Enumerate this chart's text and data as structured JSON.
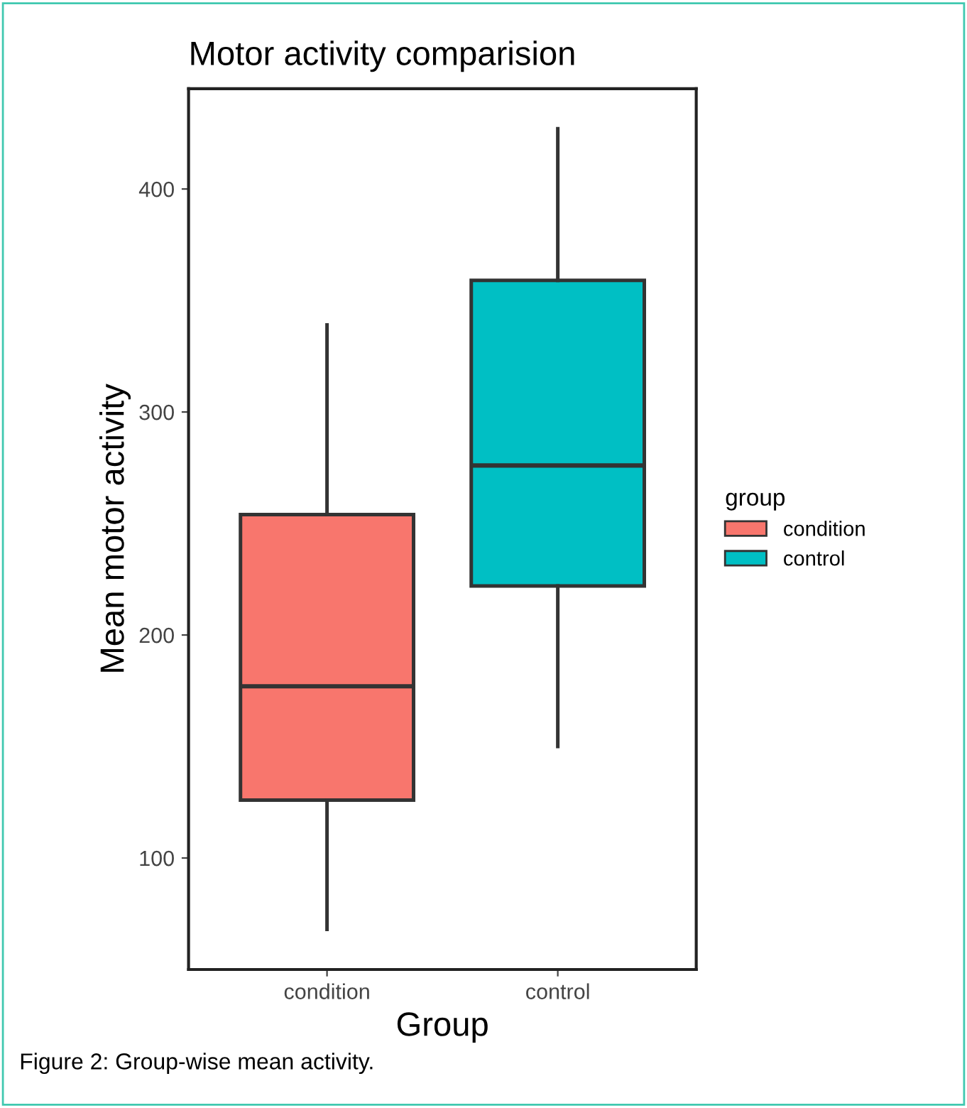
{
  "chart_data": {
    "type": "box",
    "title": "Motor activity comparision",
    "xlabel": "Group",
    "ylabel": "Mean motor activity",
    "legend_title": "group",
    "categories": [
      "condition",
      "control"
    ],
    "series": [
      {
        "name": "condition",
        "color": "#f8766d",
        "boxes": [
          {
            "low": 68,
            "q1": 126,
            "median": 177,
            "q3": 254,
            "high": 339
          },
          null
        ]
      },
      {
        "name": "control",
        "color": "#00bfc4",
        "boxes": [
          null,
          {
            "low": 150,
            "q1": 222,
            "median": 276,
            "q3": 359,
            "high": 427
          }
        ]
      }
    ],
    "ylim": [
      50,
      445
    ],
    "yticks": [
      100,
      200,
      300,
      400
    ],
    "grid": false,
    "legend": "right",
    "annotations": [
      "Figure 2: Group-wise mean activity."
    ]
  }
}
